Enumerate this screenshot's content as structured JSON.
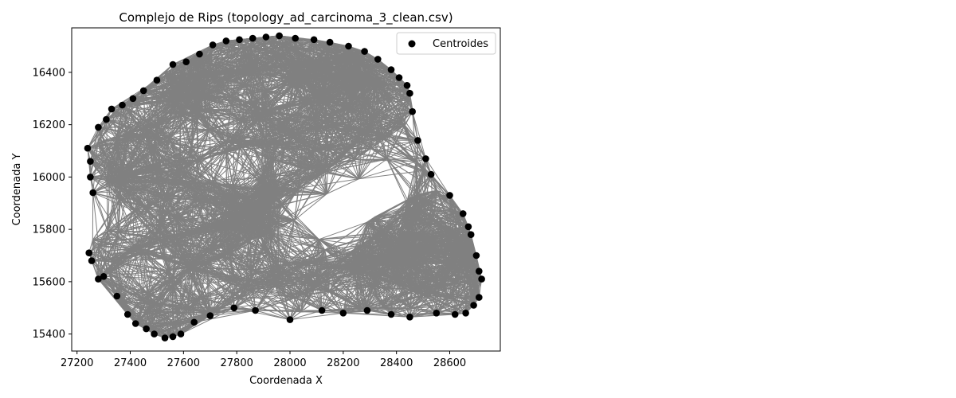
{
  "chart_data": {
    "type": "scatter",
    "title": "Complejo de Rips (topology_ad_carcinoma_3_clean.csv)",
    "xlabel": "Coordenada X",
    "ylabel": "Coordenada Y",
    "xlim": [
      27180,
      28790
    ],
    "ylim": [
      15335,
      16570
    ],
    "xticks": [
      "27200",
      "27400",
      "27600",
      "27800",
      "28000",
      "28200",
      "28400",
      "28600"
    ],
    "yticks": [
      "15400",
      "15600",
      "15800",
      "16000",
      "16200",
      "16400"
    ],
    "legend": {
      "label": "Centroides",
      "placement": "top-right"
    },
    "colors": {
      "points": "#000000",
      "edges": "#808080",
      "axes": "#000000"
    },
    "grid": false,
    "series": [
      {
        "name": "Centroides",
        "points": [
          [
            27240,
            16110
          ],
          [
            27250,
            16060
          ],
          [
            27250,
            16000
          ],
          [
            27260,
            15940
          ],
          [
            27245,
            15710
          ],
          [
            27255,
            15680
          ],
          [
            27280,
            15610
          ],
          [
            27300,
            15620
          ],
          [
            27350,
            15545
          ],
          [
            27390,
            15475
          ],
          [
            27420,
            15440
          ],
          [
            27460,
            15420
          ],
          [
            27490,
            15400
          ],
          [
            27530,
            15385
          ],
          [
            27560,
            15390
          ],
          [
            27590,
            15400
          ],
          [
            27640,
            15445
          ],
          [
            27700,
            15470
          ],
          [
            27790,
            15500
          ],
          [
            27870,
            15490
          ],
          [
            28000,
            15455
          ],
          [
            28120,
            15490
          ],
          [
            28200,
            15480
          ],
          [
            28290,
            15490
          ],
          [
            28380,
            15475
          ],
          [
            28450,
            15465
          ],
          [
            28550,
            15480
          ],
          [
            28620,
            15475
          ],
          [
            28660,
            15480
          ],
          [
            28690,
            15510
          ],
          [
            28710,
            15540
          ],
          [
            28720,
            15610
          ],
          [
            28710,
            15640
          ],
          [
            28700,
            15700
          ],
          [
            28680,
            15780
          ],
          [
            28670,
            15810
          ],
          [
            28650,
            15860
          ],
          [
            28600,
            15930
          ],
          [
            28530,
            16010
          ],
          [
            28510,
            16070
          ],
          [
            28480,
            16140
          ],
          [
            28460,
            16250
          ],
          [
            28450,
            16320
          ],
          [
            28440,
            16350
          ],
          [
            28410,
            16380
          ],
          [
            28380,
            16410
          ],
          [
            28330,
            16450
          ],
          [
            28280,
            16480
          ],
          [
            28220,
            16500
          ],
          [
            28150,
            16515
          ],
          [
            28090,
            16525
          ],
          [
            28020,
            16530
          ],
          [
            27960,
            16540
          ],
          [
            27910,
            16535
          ],
          [
            27860,
            16530
          ],
          [
            27810,
            16525
          ],
          [
            27760,
            16520
          ],
          [
            27710,
            16505
          ],
          [
            27660,
            16470
          ],
          [
            27610,
            16440
          ],
          [
            27560,
            16430
          ],
          [
            27500,
            16370
          ],
          [
            27450,
            16330
          ],
          [
            27410,
            16300
          ],
          [
            27370,
            16275
          ],
          [
            27330,
            16260
          ],
          [
            27310,
            16220
          ],
          [
            27280,
            16190
          ]
        ]
      }
    ]
  }
}
